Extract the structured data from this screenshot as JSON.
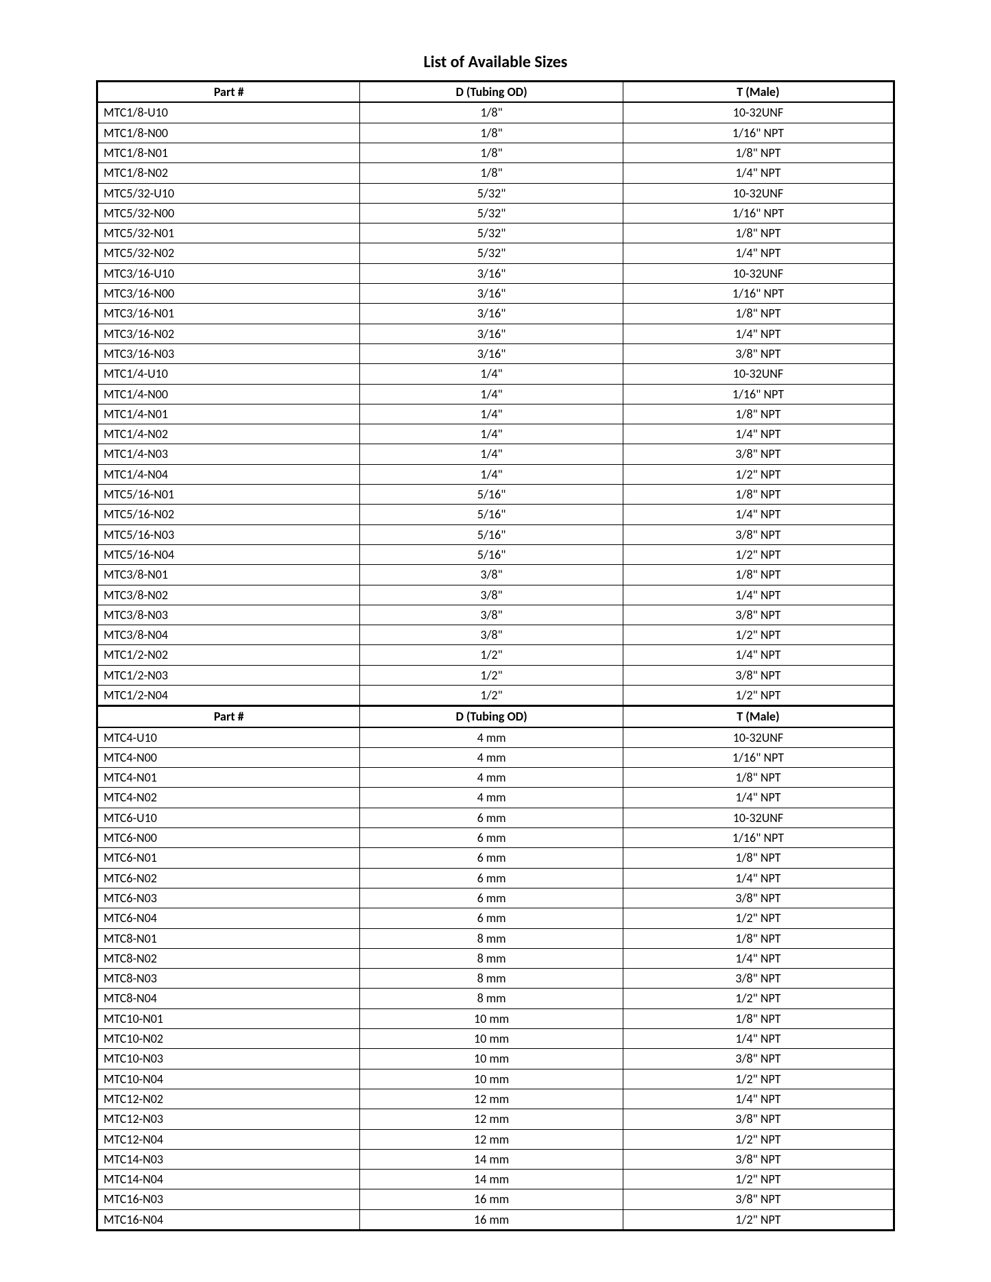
{
  "title": "List of Available Sizes",
  "table": {
    "columns": [
      "Part #",
      "D (Tubing OD)",
      "T (Male)"
    ],
    "section1": [
      [
        "MTC1/8-U10",
        "1/8\"",
        "10-32UNF"
      ],
      [
        "MTC1/8-N00",
        "1/8\"",
        "1/16\" NPT"
      ],
      [
        "MTC1/8-N01",
        "1/8\"",
        "1/8\" NPT"
      ],
      [
        "MTC1/8-N02",
        "1/8\"",
        "1/4\" NPT"
      ],
      [
        "MTC5/32-U10",
        "5/32\"",
        "10-32UNF"
      ],
      [
        "MTC5/32-N00",
        "5/32\"",
        "1/16\" NPT"
      ],
      [
        "MTC5/32-N01",
        "5/32\"",
        "1/8\" NPT"
      ],
      [
        "MTC5/32-N02",
        "5/32\"",
        "1/4\" NPT"
      ],
      [
        "MTC3/16-U10",
        "3/16\"",
        "10-32UNF"
      ],
      [
        "MTC3/16-N00",
        "3/16\"",
        "1/16\" NPT"
      ],
      [
        "MTC3/16-N01",
        "3/16\"",
        "1/8\" NPT"
      ],
      [
        "MTC3/16-N02",
        "3/16\"",
        "1/4\" NPT"
      ],
      [
        "MTC3/16-N03",
        "3/16\"",
        "3/8\" NPT"
      ],
      [
        "MTC1/4-U10",
        "1/4\"",
        "10-32UNF"
      ],
      [
        "MTC1/4-N00",
        "1/4\"",
        "1/16\" NPT"
      ],
      [
        "MTC1/4-N01",
        "1/4\"",
        "1/8\" NPT"
      ],
      [
        "MTC1/4-N02",
        "1/4\"",
        "1/4\" NPT"
      ],
      [
        "MTC1/4-N03",
        "1/4\"",
        "3/8\" NPT"
      ],
      [
        "MTC1/4-N04",
        "1/4\"",
        "1/2\" NPT"
      ],
      [
        "MTC5/16-N01",
        "5/16\"",
        "1/8\" NPT"
      ],
      [
        "MTC5/16-N02",
        "5/16\"",
        "1/4\" NPT"
      ],
      [
        "MTC5/16-N03",
        "5/16\"",
        "3/8\" NPT"
      ],
      [
        "MTC5/16-N04",
        "5/16\"",
        "1/2\" NPT"
      ],
      [
        "MTC3/8-N01",
        "3/8\"",
        "1/8\" NPT"
      ],
      [
        "MTC3/8-N02",
        "3/8\"",
        "1/4\" NPT"
      ],
      [
        "MTC3/8-N03",
        "3/8\"",
        "3/8\" NPT"
      ],
      [
        "MTC3/8-N04",
        "3/8\"",
        "1/2\" NPT"
      ],
      [
        "MTC1/2-N02",
        "1/2\"",
        "1/4\" NPT"
      ],
      [
        "MTC1/2-N03",
        "1/2\"",
        "3/8\" NPT"
      ],
      [
        "MTC1/2-N04",
        "1/2\"",
        "1/2\" NPT"
      ]
    ],
    "section2": [
      [
        "MTC4-U10",
        "4 mm",
        "10-32UNF"
      ],
      [
        "MTC4-N00",
        "4 mm",
        "1/16\" NPT"
      ],
      [
        "MTC4-N01",
        "4 mm",
        "1/8\" NPT"
      ],
      [
        "MTC4-N02",
        "4 mm",
        "1/4\" NPT"
      ],
      [
        "MTC6-U10",
        "6 mm",
        "10-32UNF"
      ],
      [
        "MTC6-N00",
        "6 mm",
        "1/16\" NPT"
      ],
      [
        "MTC6-N01",
        "6 mm",
        "1/8\" NPT"
      ],
      [
        "MTC6-N02",
        "6 mm",
        "1/4\" NPT"
      ],
      [
        "MTC6-N03",
        "6 mm",
        "3/8\" NPT"
      ],
      [
        "MTC6-N04",
        "6 mm",
        "1/2\" NPT"
      ],
      [
        "MTC8-N01",
        "8 mm",
        "1/8\" NPT"
      ],
      [
        "MTC8-N02",
        "8 mm",
        "1/4\" NPT"
      ],
      [
        "MTC8-N03",
        "8 mm",
        "3/8\" NPT"
      ],
      [
        "MTC8-N04",
        "8 mm",
        "1/2\" NPT"
      ],
      [
        "MTC10-N01",
        "10 mm",
        "1/8\" NPT"
      ],
      [
        "MTC10-N02",
        "10 mm",
        "1/4\" NPT"
      ],
      [
        "MTC10-N03",
        "10 mm",
        "3/8\" NPT"
      ],
      [
        "MTC10-N04",
        "10 mm",
        "1/2\" NPT"
      ],
      [
        "MTC12-N02",
        "12 mm",
        "1/4\" NPT"
      ],
      [
        "MTC12-N03",
        "12 mm",
        "3/8\" NPT"
      ],
      [
        "MTC12-N04",
        "12 mm",
        "1/2\" NPT"
      ],
      [
        "MTC14-N03",
        "14 mm",
        "3/8\" NPT"
      ],
      [
        "MTC14-N04",
        "14 mm",
        "1/2\" NPT"
      ],
      [
        "MTC16-N03",
        "16 mm",
        "3/8\" NPT"
      ],
      [
        "MTC16-N04",
        "16 mm",
        "1/2\" NPT"
      ]
    ]
  }
}
